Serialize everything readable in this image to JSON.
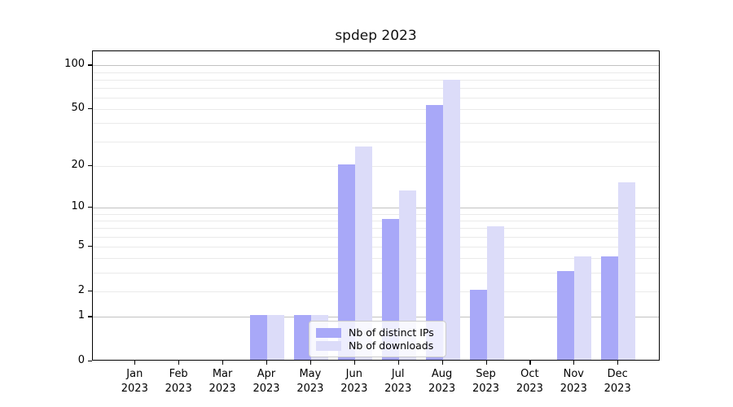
{
  "chart_data": {
    "type": "bar",
    "title": "spdep 2023",
    "categories": [
      "Jan",
      "Feb",
      "Mar",
      "Apr",
      "May",
      "Jun",
      "Jul",
      "Aug",
      "Sep",
      "Oct",
      "Nov",
      "Dec"
    ],
    "category_year": "2023",
    "series": [
      {
        "name": "Nb of distinct IPs",
        "color": "#a8a8f8",
        "values": [
          0,
          0,
          0,
          1,
          1,
          20,
          8,
          52,
          2,
          0,
          3,
          4
        ]
      },
      {
        "name": "Nb of downloads",
        "color": "#dcdcf9",
        "values": [
          0,
          0,
          0,
          1,
          1,
          27,
          13,
          78,
          7,
          0,
          4,
          15
        ]
      }
    ],
    "yscale": "log1p",
    "ylim": [
      0,
      125
    ],
    "y_ticks": [
      0,
      1,
      2,
      5,
      10,
      20,
      50,
      100
    ],
    "y_grid_major": [
      1,
      10,
      100
    ],
    "y_grid_minor": [
      2,
      3,
      4,
      5,
      6,
      7,
      8,
      9,
      20,
      30,
      40,
      50,
      60,
      70,
      80,
      90
    ],
    "grid": true,
    "legend_position": "lower center",
    "colors": {
      "grid_major": "#c2c2c2",
      "grid_minor": "#eaeaea",
      "axis": "#000000"
    }
  }
}
